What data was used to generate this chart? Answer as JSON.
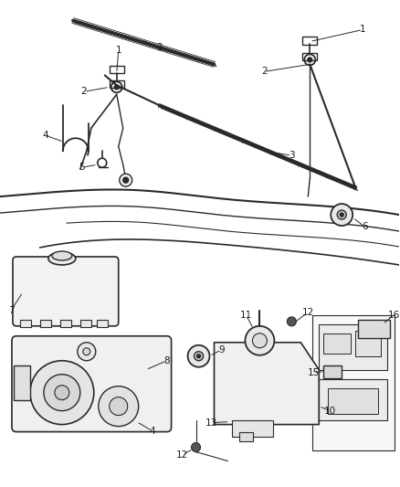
{
  "bg_color": "#ffffff",
  "line_color": "#2a2a2a",
  "label_color": "#1a1a1a",
  "label_fontsize": 7.5,
  "fig_w": 4.38,
  "fig_h": 5.33,
  "dpi": 100
}
